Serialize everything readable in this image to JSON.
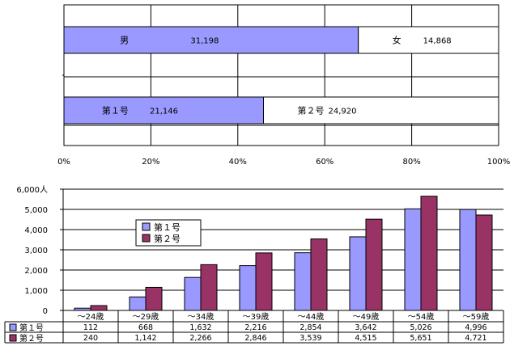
{
  "chart_data": [
    {
      "type": "bar",
      "orientation": "horizontal",
      "stacked": "percent",
      "xlim": [
        0,
        100
      ],
      "ticks": [
        "0%",
        "20%",
        "40%",
        "60%",
        "80%",
        "100%"
      ],
      "grid": true,
      "colors": {
        "first": "#9999ff",
        "second": "#ffffff"
      },
      "bars": [
        {
          "segments": [
            {
              "label": "男",
              "value": 31198,
              "value_text": "31,198"
            },
            {
              "label": "女",
              "value": 14868,
              "value_text": "14,868"
            }
          ]
        },
        {
          "segments": [
            {
              "label": "第１号",
              "value": 21146,
              "value_text": "21,146"
            },
            {
              "label": "第２号",
              "value": 24920,
              "value_text": "24,920"
            }
          ]
        }
      ]
    },
    {
      "type": "bar",
      "ylim": [
        0,
        6000
      ],
      "yticks": [
        "0",
        "1,000",
        "2,000",
        "3,000",
        "4,000",
        "5,000",
        "6,000人"
      ],
      "categories": [
        "～24歳",
        "～29歳",
        "～34歳",
        "～39歳",
        "～44歳",
        "～49歳",
        "～54歳",
        "～59歳"
      ],
      "grid": true,
      "legend_position": "left-inside",
      "series": [
        {
          "name": "第１号",
          "color": "#9999ff",
          "values": [
            112,
            668,
            1632,
            2216,
            2854,
            3642,
            5026,
            4996
          ],
          "labels": [
            "112",
            "668",
            "1,632",
            "2,216",
            "2,854",
            "3,642",
            "5,026",
            "4,996"
          ]
        },
        {
          "name": "第２号",
          "color": "#993366",
          "values": [
            240,
            1142,
            2266,
            2846,
            3539,
            4515,
            5651,
            4721
          ],
          "labels": [
            "240",
            "1,142",
            "2,266",
            "2,846",
            "3,539",
            "4,515",
            "5,651",
            "4,721"
          ]
        }
      ]
    }
  ]
}
